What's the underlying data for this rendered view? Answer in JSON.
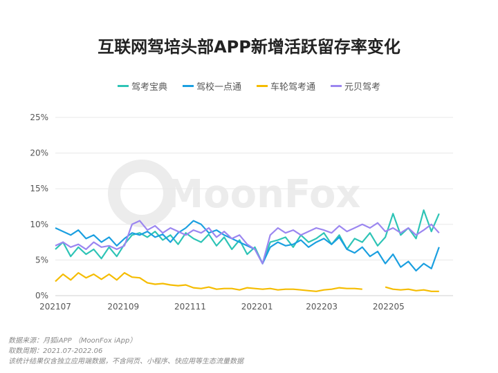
{
  "chart_data": {
    "type": "line",
    "title": "互联网驾培头部APP新增活跃留存率变化",
    "ylim": [
      0,
      25
    ],
    "yticks": [
      "0%",
      "5%",
      "10%",
      "15%",
      "20%",
      "25%"
    ],
    "xticks": [
      "202107",
      "202109",
      "202111",
      "202201",
      "202203",
      "202205"
    ],
    "grid": true,
    "legend": "top",
    "watermark": "MoonFox",
    "x": [
      "2021-07-01",
      "2021-07-08",
      "2021-07-15",
      "2021-07-22",
      "2021-07-29",
      "2021-08-05",
      "2021-08-12",
      "2021-08-19",
      "2021-08-26",
      "2021-09-02",
      "2021-09-09",
      "2021-09-16",
      "2021-09-23",
      "2021-09-30",
      "2021-10-07",
      "2021-10-14",
      "2021-10-21",
      "2021-10-28",
      "2021-11-04",
      "2021-11-11",
      "2021-11-18",
      "2021-11-25",
      "2021-12-02",
      "2021-12-09",
      "2021-12-16",
      "2021-12-23",
      "2021-12-30",
      "2022-01-06",
      "2022-01-13",
      "2022-01-20",
      "2022-01-27",
      "2022-02-03",
      "2022-02-10",
      "2022-02-17",
      "2022-02-24",
      "2022-03-03",
      "2022-03-10",
      "2022-03-17",
      "2022-03-24",
      "2022-03-31",
      "2022-04-07",
      "2022-04-14",
      "2022-04-21",
      "2022-04-28",
      "2022-05-05",
      "2022-05-12",
      "2022-05-19",
      "2022-05-26",
      "2022-06-02",
      "2022-06-09",
      "2022-06-16"
    ],
    "series": [
      {
        "name": "驾考宝典",
        "color": "#2ec4b6",
        "values": [
          6.5,
          7.5,
          5.5,
          6.8,
          5.8,
          6.5,
          5.2,
          6.8,
          5.5,
          7.2,
          8.5,
          8.8,
          8.2,
          9.0,
          7.8,
          8.5,
          7.2,
          8.8,
          8.0,
          7.5,
          8.6,
          7.0,
          8.2,
          6.5,
          7.8,
          5.8,
          6.8,
          4.5,
          7.5,
          7.8,
          8.2,
          6.8,
          8.5,
          7.5,
          8.0,
          8.8,
          7.2,
          8.5,
          6.5,
          8.0,
          7.5,
          8.8,
          7.0,
          8.2,
          11.5,
          8.5,
          9.5,
          8.0,
          12.0,
          9.0,
          11.5
        ]
      },
      {
        "name": "驾校一点通",
        "color": "#1a9fe0",
        "values": [
          9.5,
          9.0,
          8.5,
          9.2,
          8.0,
          8.5,
          7.5,
          8.2,
          7.0,
          8.0,
          8.8,
          8.5,
          9.0,
          8.2,
          8.6,
          7.5,
          8.8,
          9.5,
          10.5,
          10.0,
          8.8,
          9.2,
          8.5,
          8.0,
          7.5,
          7.0,
          6.5,
          4.5,
          6.8,
          7.5,
          7.0,
          7.2,
          7.8,
          6.8,
          7.5,
          8.0,
          7.2,
          8.2,
          6.5,
          6.0,
          6.8,
          5.5,
          6.2,
          4.5,
          5.8,
          4.0,
          4.8,
          3.5,
          4.5,
          3.8,
          6.8
        ]
      },
      {
        "name": "车轮驾考通",
        "color": "#f5bc00",
        "values": [
          2.0,
          3.0,
          2.2,
          3.2,
          2.5,
          3.0,
          2.3,
          3.0,
          2.2,
          3.2,
          2.6,
          2.5,
          1.8,
          1.6,
          1.7,
          1.5,
          1.4,
          1.5,
          1.1,
          1.0,
          1.2,
          0.9,
          1.0,
          1.0,
          0.8,
          1.1,
          1.0,
          0.9,
          1.0,
          0.8,
          0.9,
          0.9,
          0.8,
          0.7,
          0.6,
          0.8,
          0.9,
          1.1,
          1.0,
          1.0,
          0.9,
          null,
          null,
          1.2,
          0.9,
          0.8,
          0.9,
          0.7,
          0.8,
          0.6,
          0.6
        ]
      },
      {
        "name": "元贝驾考",
        "color": "#9b86f0",
        "values": [
          7.0,
          7.5,
          6.8,
          7.2,
          6.5,
          7.5,
          6.8,
          7.0,
          6.5,
          7.0,
          10.0,
          10.5,
          9.2,
          9.8,
          8.8,
          9.5,
          9.0,
          8.5,
          9.2,
          8.8,
          9.5,
          8.2,
          9.0,
          8.0,
          8.5,
          7.2,
          6.5,
          4.5,
          8.5,
          9.5,
          8.8,
          9.2,
          8.5,
          9.0,
          9.5,
          9.2,
          8.8,
          9.8,
          9.0,
          9.5,
          10.0,
          9.5,
          10.2,
          9.0,
          9.5,
          8.8,
          9.5,
          8.5,
          9.2,
          10.0,
          8.8
        ]
      }
    ]
  },
  "notes": [
    "数据来源：月狐iAPP （MoonFox iApp）",
    "取数周期：2021.07-2022.06",
    "该统计结果仅含独立应用端数据，不含网页、小程序、快应用等生态流量数据"
  ]
}
